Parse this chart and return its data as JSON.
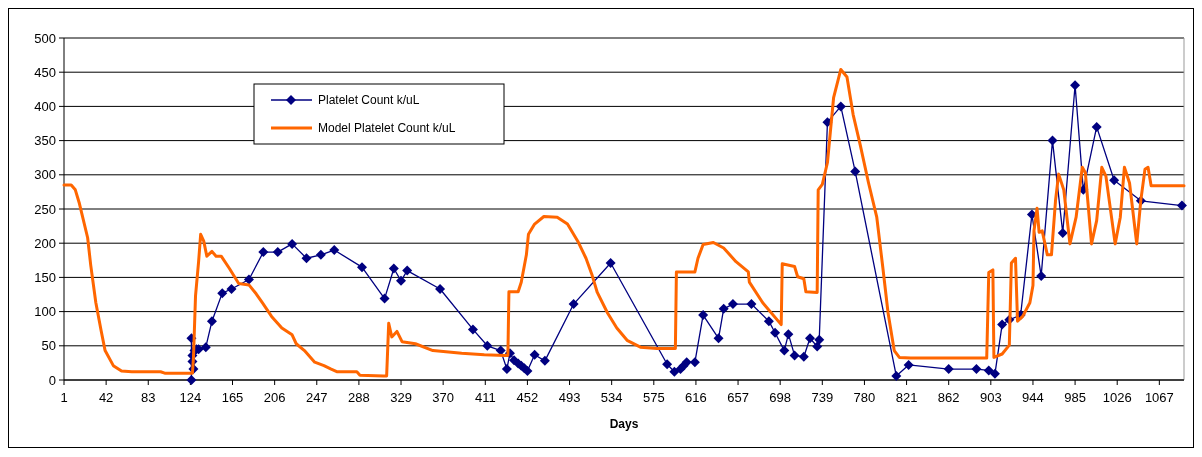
{
  "chart_data": {
    "type": "line",
    "xlabel": "Days",
    "xlim": [
      1,
      1091
    ],
    "ylim": [
      0,
      500
    ],
    "xticks": [
      1,
      42,
      83,
      124,
      165,
      206,
      247,
      288,
      329,
      370,
      411,
      452,
      493,
      534,
      575,
      616,
      657,
      698,
      739,
      780,
      821,
      862,
      903,
      944,
      985,
      1026,
      1067
    ],
    "yticks": [
      0,
      50,
      100,
      150,
      200,
      250,
      300,
      350,
      400,
      450,
      500
    ],
    "grid": "y",
    "legend": "top left",
    "series": [
      {
        "name": "Platelet Count k/uL",
        "color": "#000080",
        "marker": "diamond",
        "x": [
          125,
          125,
          126,
          126,
          127,
          128,
          130,
          132,
          139,
          145,
          155,
          164,
          181,
          195,
          209,
          223,
          237,
          251,
          264,
          291,
          313,
          322,
          329,
          335,
          367,
          399,
          413,
          426,
          432,
          435,
          439,
          443,
          446,
          449,
          452,
          459,
          469,
          497,
          533,
          588,
          595,
          601,
          604,
          607,
          615,
          623,
          638,
          643,
          652,
          670,
          687,
          693,
          702,
          706,
          712,
          721,
          727,
          734,
          736,
          744,
          757,
          771,
          811,
          823,
          862,
          889,
          901,
          907,
          914,
          921,
          932,
          943,
          952,
          963,
          973,
          985,
          993,
          1006,
          1023,
          1049,
          1089
        ],
        "values": [
          0,
          61,
          27,
          36,
          16,
          43,
          45,
          45,
          48,
          86,
          127,
          133,
          147,
          187,
          187,
          199,
          178,
          183,
          190,
          165,
          119,
          163,
          145,
          160,
          133,
          74,
          50,
          43,
          16,
          39,
          29,
          24,
          21,
          17,
          13,
          37,
          28,
          111,
          171,
          23,
          12,
          16,
          21,
          26,
          26,
          95,
          61,
          104,
          111,
          111,
          86,
          69,
          43,
          67,
          36,
          34,
          61,
          49,
          59,
          377,
          400,
          305,
          6,
          22,
          16,
          16,
          14,
          9,
          81,
          88,
          95,
          242,
          152,
          350,
          215,
          431,
          278,
          370,
          292,
          262,
          255
        ]
      },
      {
        "name": "Model Platelet Count k/uL",
        "color": "#ff6600",
        "marker": "none",
        "x": [
          1,
          8,
          12,
          16,
          24,
          27,
          32,
          37,
          41,
          49,
          57,
          67,
          95,
          99,
          126,
          127,
          129,
          132,
          134,
          137,
          140,
          145,
          149,
          154,
          162,
          171,
          181,
          188,
          194,
          203,
          213,
          223,
          227,
          235,
          245,
          254,
          261,
          267,
          286,
          289,
          312,
          315,
          317,
          320,
          325,
          330,
          343,
          360,
          388,
          410,
          430,
          433,
          434,
          443,
          446,
          451,
          453,
          459,
          468,
          481,
          491,
          501,
          509,
          515,
          520,
          530,
          539,
          549,
          562,
          578,
          596,
          597,
          615,
          618,
          623,
          633,
          643,
          655,
          667,
          668,
          681,
          699,
          700,
          712,
          715,
          721,
          723,
          734,
          735,
          739,
          744,
          750,
          757,
          763,
          769,
          776,
          784,
          792,
          798,
          803,
          809,
          814,
          825,
          899,
          901,
          905,
          906,
          914,
          921,
          923,
          927,
          929,
          934,
          941,
          944,
          945,
          948,
          950,
          953,
          958,
          962,
          966,
          969,
          974,
          980,
          986,
          992,
          995,
          1001,
          1006,
          1011,
          1015,
          1024,
          1029,
          1033,
          1038,
          1045,
          1049,
          1053,
          1056,
          1059,
          1091
        ],
        "values": [
          285,
          285,
          278,
          258,
          208,
          168,
          113,
          73,
          43,
          21,
          13,
          12,
          12,
          10,
          10,
          33,
          123,
          173,
          213,
          203,
          181,
          188,
          181,
          181,
          163,
          141,
          139,
          126,
          113,
          93,
          76,
          66,
          53,
          43,
          26,
          21,
          16,
          12,
          12,
          7,
          6,
          6,
          83,
          63,
          71,
          56,
          53,
          43,
          39,
          37,
          36,
          36,
          129,
          129,
          143,
          183,
          213,
          228,
          239,
          238,
          228,
          203,
          178,
          153,
          128,
          98,
          76,
          58,
          48,
          46,
          46,
          158,
          158,
          178,
          198,
          201,
          193,
          173,
          158,
          143,
          113,
          81,
          170,
          166,
          151,
          148,
          129,
          128,
          278,
          286,
          318,
          413,
          454,
          443,
          388,
          343,
          288,
          238,
          163,
          98,
          43,
          33,
          32,
          32,
          157,
          161,
          33,
          38,
          51,
          171,
          178,
          86,
          93,
          113,
          138,
          218,
          251,
          216,
          218,
          183,
          183,
          263,
          301,
          278,
          199,
          238,
          311,
          303,
          199,
          233,
          311,
          298,
          199,
          238,
          311,
          288,
          199,
          263,
          308,
          311,
          284,
          284
        ]
      }
    ]
  }
}
